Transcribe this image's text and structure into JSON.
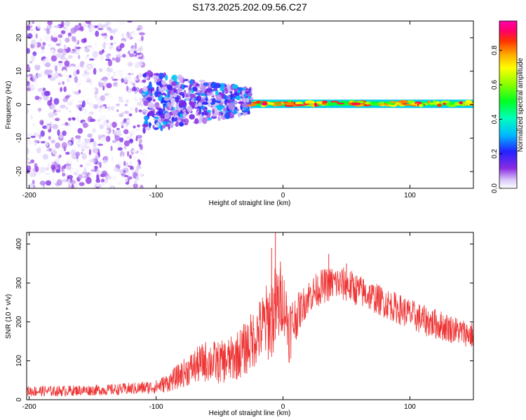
{
  "title": "S173.2025.202.09.56.C27",
  "chart_data": [
    {
      "type": "heatmap",
      "xlabel": "Height of straight line (km)",
      "ylabel": "Frequency (Hz)",
      "xlim": [
        -202,
        150
      ],
      "ylim": [
        -25,
        25
      ],
      "x_ticks": [
        -200,
        -100,
        0,
        100
      ],
      "y_ticks": [
        -20,
        -10,
        0,
        10,
        20
      ],
      "colorbar": {
        "label": "Normalized spectral amplitude",
        "range": [
          0,
          0.97
        ],
        "ticks": [
          0.0,
          0.2,
          0.4,
          0.6,
          0.8
        ],
        "tick_labels": [
          "0.0",
          "0.2",
          "0.4",
          "0.6",
          "0.8"
        ]
      },
      "features": [
        {
          "x_range": [
            -202,
            -110
          ],
          "freq_range": [
            -25,
            25
          ],
          "amplitude": [
            0.0,
            0.15
          ],
          "pattern": "scattered blobs"
        },
        {
          "x_range": [
            -110,
            -25
          ],
          "freq_range": [
            -8,
            9
          ],
          "amplitude": [
            0.05,
            0.35
          ],
          "pattern": "clustered blobs"
        },
        {
          "x_range": [
            -25,
            150
          ],
          "freq_range": [
            -1,
            1.5
          ],
          "amplitude": [
            0.5,
            0.95
          ],
          "pattern": "narrow band near 0 Hz"
        }
      ]
    },
    {
      "type": "line",
      "xlabel": "Height of straight line (km)",
      "ylabel": "SNR (10 * v/v)",
      "xlim": [
        -202,
        150
      ],
      "ylim": [
        0,
        430
      ],
      "x_ticks": [
        -200,
        -100,
        0,
        100
      ],
      "y_ticks": [
        0,
        100,
        200,
        300,
        400
      ],
      "grid": false,
      "legend": "none",
      "color": "#ee3333",
      "series": [
        {
          "x": [
            -200,
            -180,
            -160,
            -140,
            -120,
            -100,
            -90,
            -80,
            -70,
            -60,
            -50,
            -40,
            -30,
            -20,
            -10,
            -5,
            0,
            5,
            10,
            15,
            20,
            30,
            40,
            50,
            60,
            70,
            80,
            90,
            100,
            110,
            120,
            130,
            140,
            150
          ],
          "values": [
            22,
            22,
            24,
            25,
            28,
            33,
            45,
            65,
            85,
            100,
            95,
            105,
            130,
            170,
            210,
            235,
            260,
            180,
            210,
            240,
            265,
            290,
            300,
            295,
            280,
            265,
            250,
            235,
            220,
            205,
            195,
            185,
            175,
            165
          ],
          "noise": [
            14,
            14,
            14,
            14,
            16,
            18,
            25,
            35,
            45,
            55,
            55,
            60,
            70,
            80,
            110,
            120,
            80,
            90,
            60,
            45,
            45,
            45,
            45,
            45,
            42,
            40,
            40,
            40,
            40,
            40,
            40,
            38,
            35,
            35
          ]
        }
      ],
      "spikes": [
        {
          "x": -6,
          "value": 430
        },
        {
          "x": -9,
          "value": 390
        },
        {
          "x": -2,
          "value": 355
        },
        {
          "x": 36,
          "value": 375
        },
        {
          "x": 50,
          "value": 350
        }
      ]
    }
  ]
}
